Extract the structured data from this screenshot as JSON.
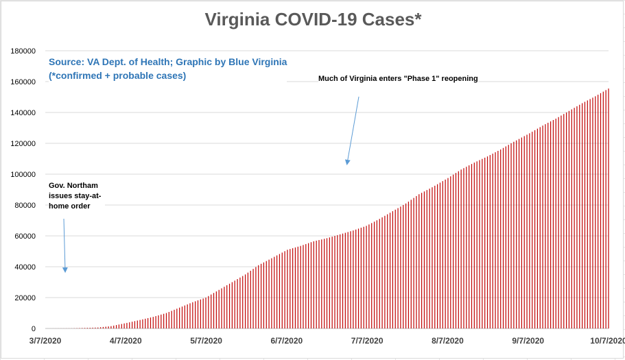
{
  "title": "Virginia COVID-19 Cases*",
  "source": {
    "line1": "Source: VA Dept. of Health; Graphic by Blue Virginia",
    "line2": "(*confirmed + probable cases)"
  },
  "annotations": {
    "stay_home": "Gov. Northam issues stay-at-home order",
    "phase1": "Much of Virginia enters \"Phase 1\" reopening"
  },
  "colors": {
    "bars": "#c00000",
    "arrow": "#5b9bd5",
    "title": "#595959",
    "source": "#2e75b6"
  },
  "chart_data": {
    "type": "bar",
    "title": "Virginia COVID-19 Cases*",
    "xlabel": "",
    "ylabel": "",
    "x_ticks": [
      "3/7/2020",
      "4/7/2020",
      "5/7/2020",
      "6/7/2020",
      "7/7/2020",
      "8/7/2020",
      "9/7/2020",
      "10/7/2020"
    ],
    "y_ticks": [
      "0",
      "20000",
      "40000",
      "60000",
      "80000",
      "100000",
      "120000",
      "140000",
      "160000",
      "180000"
    ],
    "ylim": [
      0,
      180000
    ],
    "x_range": [
      "2020-03-07",
      "2020-10-07"
    ],
    "grid": true,
    "legend": "none",
    "series": [
      {
        "values_by_date": [
          [
            "2020-03-07",
            0
          ],
          [
            "2020-03-17",
            70
          ],
          [
            "2020-03-27",
            600
          ],
          [
            "2020-04-01",
            1500
          ],
          [
            "2020-04-07",
            3600
          ],
          [
            "2020-04-12",
            5500
          ],
          [
            "2020-04-17",
            7500
          ],
          [
            "2020-04-22",
            10000
          ],
          [
            "2020-04-27",
            13500
          ],
          [
            "2020-05-02",
            17000
          ],
          [
            "2020-05-07",
            20000
          ],
          [
            "2020-05-12",
            25000
          ],
          [
            "2020-05-17",
            30000
          ],
          [
            "2020-05-22",
            35000
          ],
          [
            "2020-05-27",
            41000
          ],
          [
            "2020-06-01",
            45500
          ],
          [
            "2020-06-07",
            51000
          ],
          [
            "2020-06-12",
            53500
          ],
          [
            "2020-06-17",
            56500
          ],
          [
            "2020-06-22",
            58500
          ],
          [
            "2020-06-27",
            61000
          ],
          [
            "2020-07-02",
            63500
          ],
          [
            "2020-07-07",
            66500
          ],
          [
            "2020-07-12",
            71000
          ],
          [
            "2020-07-17",
            76000
          ],
          [
            "2020-07-22",
            81000
          ],
          [
            "2020-07-27",
            87000
          ],
          [
            "2020-08-01",
            91500
          ],
          [
            "2020-08-07",
            97500
          ],
          [
            "2020-08-12",
            103000
          ],
          [
            "2020-08-17",
            107500
          ],
          [
            "2020-08-22",
            111500
          ],
          [
            "2020-08-27",
            116000
          ],
          [
            "2020-09-01",
            121000
          ],
          [
            "2020-09-07",
            126500
          ],
          [
            "2020-09-12",
            131500
          ],
          [
            "2020-09-17",
            136000
          ],
          [
            "2020-09-22",
            141000
          ],
          [
            "2020-09-27",
            146000
          ],
          [
            "2020-10-02",
            150500
          ],
          [
            "2020-10-07",
            155500
          ]
        ]
      }
    ]
  }
}
